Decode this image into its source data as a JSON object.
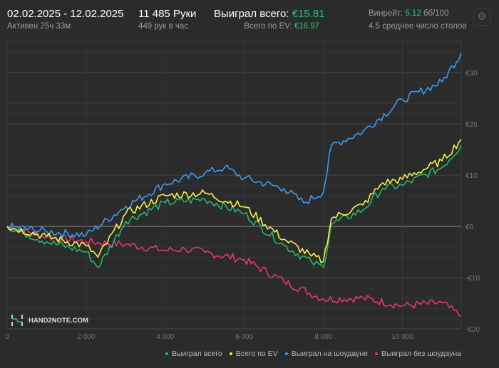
{
  "header": {
    "date_range": "02.02.2025 - 12.02.2025",
    "active": "Активен 25ч 33м",
    "hands": "11 485 Руки",
    "hands_per_hour": "449 рук в час",
    "won_label": "Выиграл всего:",
    "won_value": "€15.81",
    "ev_label": "Всего по EV:",
    "ev_value": "€16.97",
    "winrate_label": "Винрейт:",
    "winrate_value": "5.12",
    "winrate_unit": "бб/100",
    "tables": "4.5 среднее число столов",
    "settings_icon": "gear-icon"
  },
  "logo": "HAND2NOTE.COM",
  "chart_data": {
    "type": "line",
    "xlabel": "",
    "ylabel": "",
    "xlim": [
      0,
      11485
    ],
    "ylim": [
      -20,
      38
    ],
    "x_ticks": [
      0,
      2000,
      4000,
      6000,
      8000,
      10000
    ],
    "x_tick_labels": [
      "0",
      "2 000",
      "4 000",
      "6 000",
      "8 000",
      "10 000"
    ],
    "y_ticks": [
      30,
      20,
      10,
      0,
      -10,
      -20
    ],
    "y_tick_labels": [
      "€30",
      "€20",
      "€10",
      "€0",
      "-€10",
      "-€20"
    ],
    "grid": true,
    "legend_position": "bottom-right",
    "series": [
      {
        "name": "Выиграл всего",
        "color": "#1fb86c",
        "x": [
          0,
          1000,
          2000,
          2300,
          3000,
          4000,
          5000,
          6000,
          7000,
          7700,
          8000,
          8200,
          9000,
          9500,
          10000,
          11000,
          11485
        ],
        "y": [
          0,
          -3,
          -5,
          -8,
          1,
          4.6,
          5.3,
          2.5,
          -3.7,
          -7,
          -8,
          0.4,
          3.2,
          7.4,
          8,
          11.5,
          15.81
        ]
      },
      {
        "name": "Всего по EV",
        "color": "#f3f34a",
        "x": [
          0,
          1000,
          2000,
          2300,
          3000,
          4000,
          5000,
          6000,
          7000,
          7700,
          8000,
          8200,
          9000,
          9500,
          10000,
          11000,
          11485
        ],
        "y": [
          0,
          -2,
          -3.8,
          -6,
          2.5,
          6,
          6.5,
          3.8,
          -2.5,
          -5.8,
          -6.8,
          1.5,
          4.2,
          8.5,
          9.2,
          12.8,
          16.97
        ]
      },
      {
        "name": "Выиграл на шоудауне",
        "color": "#3a9cf0",
        "x": [
          0,
          1000,
          2000,
          3000,
          4000,
          5000,
          5500,
          6000,
          7000,
          7500,
          8000,
          8200,
          9000,
          10000,
          11000,
          11485
        ],
        "y": [
          0,
          -1,
          -1.7,
          3.9,
          8.3,
          10.4,
          11.5,
          9.4,
          7.4,
          4.6,
          6.7,
          15.7,
          18.5,
          24.7,
          28.2,
          33.8
        ]
      },
      {
        "name": "Выиграл без шоудауна",
        "color": "#e8366d",
        "x": [
          0,
          1000,
          2000,
          3000,
          4000,
          4500,
          5000,
          6000,
          7000,
          8000,
          9000,
          10000,
          11000,
          11485
        ],
        "y": [
          0,
          -2,
          -3,
          -3.5,
          -4.7,
          -4.4,
          -5.1,
          -6.5,
          -10.7,
          -14.2,
          -14,
          -15.5,
          -14.9,
          -17.6
        ]
      }
    ]
  }
}
